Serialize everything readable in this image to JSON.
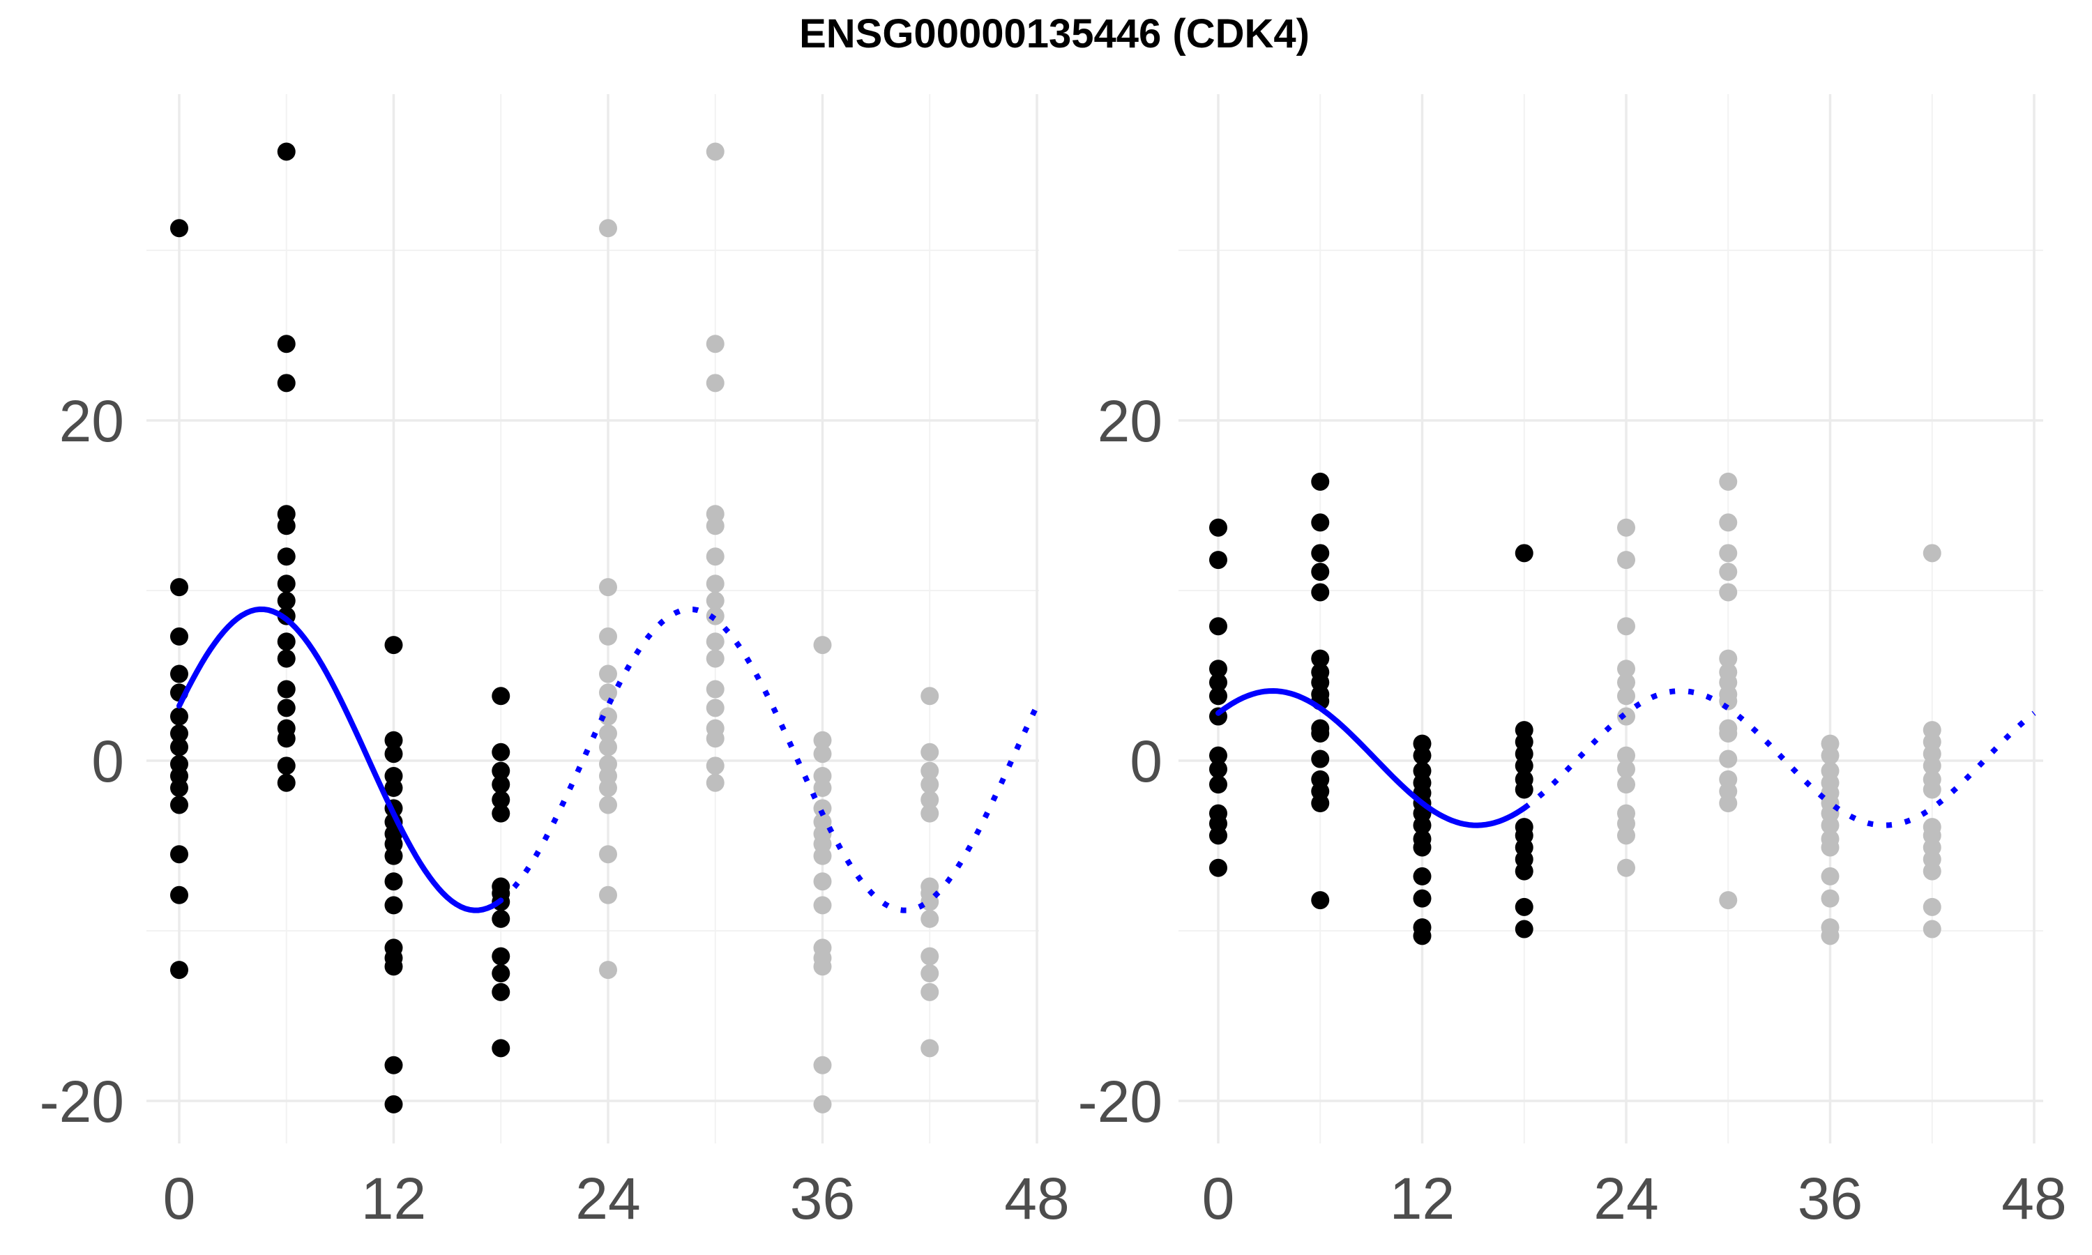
{
  "title": "ENSG00000135446 (CDK4)",
  "colors": {
    "observed": "#000000",
    "replicated": "#bebebe",
    "fit": "#0000ff",
    "grid": "#ebebeb",
    "tick_text": "#4d4d4d"
  },
  "chart_data": [
    {
      "type": "scatter",
      "panel": "left",
      "xlabel": "",
      "ylabel": "",
      "xlim": [
        0,
        48
      ],
      "ylim": [
        -20,
        35
      ],
      "x_ticks": [
        0,
        12,
        24,
        36,
        48
      ],
      "x_tick_labels": [
        "0",
        "12",
        "24",
        "36",
        "48"
      ],
      "y_ticks": [
        -20,
        0,
        20
      ],
      "y_tick_labels": [
        "-20",
        "0",
        "20"
      ],
      "grid": true,
      "legend": "none",
      "period_hours": 24,
      "observed_points": [
        {
          "x": 0,
          "y": [
            31.3,
            10.2,
            7.3,
            5.1,
            4.0,
            2.6,
            1.6,
            0.8,
            -0.2,
            -0.9,
            -1.6,
            -2.6,
            -5.5,
            -7.9,
            -12.3
          ]
        },
        {
          "x": 6,
          "y": [
            35.8,
            24.5,
            22.2,
            14.5,
            13.8,
            12.0,
            10.4,
            9.4,
            8.5,
            7.0,
            6.0,
            4.2,
            3.1,
            1.9,
            1.3,
            -0.3,
            -1.3
          ]
        },
        {
          "x": 12,
          "y": [
            6.8,
            1.2,
            0.4,
            -0.9,
            -1.6,
            -2.8,
            -3.6,
            -4.3,
            -4.9,
            -5.6,
            -7.1,
            -8.5,
            -11.0,
            -11.6,
            -12.1,
            -17.9,
            -20.2
          ]
        },
        {
          "x": 18,
          "y": [
            3.8,
            0.5,
            -0.6,
            -1.4,
            -2.3,
            -3.1,
            -7.4,
            -7.8,
            -8.3,
            -9.3,
            -11.5,
            -12.5,
            -13.6,
            -16.9
          ]
        }
      ],
      "fit_curve": {
        "mean": 0.05,
        "amplitude": 8.85,
        "peak_time": 4.6
      }
    },
    {
      "type": "scatter",
      "panel": "right",
      "xlabel": "",
      "ylabel": "",
      "xlim": [
        0,
        48
      ],
      "ylim": [
        -20,
        35
      ],
      "x_ticks": [
        0,
        12,
        24,
        36,
        48
      ],
      "x_tick_labels": [
        "0",
        "12",
        "24",
        "36",
        "48"
      ],
      "y_ticks": [
        -20,
        0,
        20
      ],
      "y_tick_labels": [
        "-20",
        "0",
        "20"
      ],
      "grid": true,
      "legend": "none",
      "period_hours": 24,
      "observed_points": [
        {
          "x": 0,
          "y": [
            13.7,
            11.8,
            7.9,
            5.4,
            4.6,
            3.8,
            2.6,
            0.3,
            -0.5,
            -1.4,
            -3.1,
            -3.7,
            -4.4,
            -6.3
          ]
        },
        {
          "x": 6,
          "y": [
            16.4,
            14.0,
            12.2,
            11.1,
            9.9,
            6.0,
            5.2,
            4.6,
            3.9,
            3.5,
            1.9,
            1.6,
            0.1,
            -1.1,
            -1.8,
            -2.5,
            -8.2
          ]
        },
        {
          "x": 12,
          "y": [
            1.0,
            0.3,
            -0.6,
            -1.3,
            -1.9,
            -2.5,
            -3.1,
            -3.8,
            -4.6,
            -5.1,
            -6.8,
            -8.1,
            -9.8,
            -10.3
          ]
        },
        {
          "x": 18,
          "y": [
            12.2,
            1.8,
            1.1,
            0.4,
            -0.3,
            -1.1,
            -1.7,
            -3.9,
            -4.4,
            -5.1,
            -5.8,
            -6.5,
            -8.6,
            -9.9
          ]
        }
      ],
      "fit_curve": {
        "mean": 0.15,
        "amplitude": 3.95,
        "peak_time": 3.2
      }
    }
  ]
}
